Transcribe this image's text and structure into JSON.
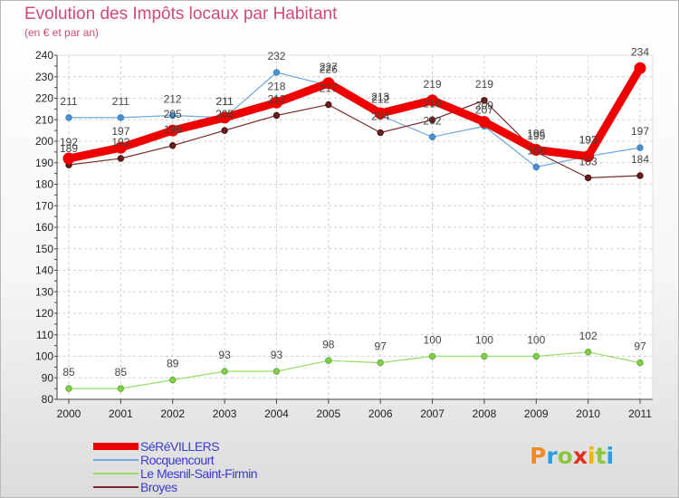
{
  "chart_data": {
    "type": "line",
    "title": "Evolution des Impôts locaux par Habitant",
    "subtitle": "(en € et par an)",
    "xlabel": "",
    "ylabel": "",
    "categories": [
      "2000",
      "2001",
      "2002",
      "2003",
      "2004",
      "2005",
      "2006",
      "2007",
      "2008",
      "2009",
      "2010",
      "2011"
    ],
    "y_ticks": [
      "240",
      "230",
      "220",
      "210",
      "200",
      "190",
      "180",
      "170",
      "160",
      "150",
      "140",
      "130",
      "120",
      "110",
      "100",
      "90",
      "80"
    ],
    "ylim": [
      80,
      240
    ],
    "grid": true,
    "legend_position": "bottom-left",
    "series": [
      {
        "name": "SéRéVILLERS",
        "color": "#ee0000",
        "values": [
          192,
          197,
          205,
          211,
          218,
          227,
          213,
          219,
          209,
          196,
          193,
          234
        ],
        "labels": [
          "192",
          "197",
          "205",
          "211",
          "218",
          "227",
          "213",
          "219",
          "209",
          "196",
          "193",
          "234"
        ]
      },
      {
        "name": "Rocquencourt",
        "color": "#6fa8dc",
        "values": [
          211,
          211,
          212,
          211,
          232,
          226,
          212,
          202,
          207,
          188,
          193,
          197
        ],
        "labels": [
          "211",
          "211",
          "212",
          "211",
          "232",
          "226",
          "212",
          "202",
          "207",
          "188",
          "193",
          "197"
        ]
      },
      {
        "name": "Le Mesnil-Saint-Firmin",
        "color": "#99dd66",
        "values": [
          85,
          85,
          89,
          93,
          93,
          98,
          97,
          100,
          100,
          100,
          102,
          97
        ],
        "labels": [
          "85",
          "85",
          "89",
          "93",
          "93",
          "98",
          "97",
          "100",
          "100",
          "100",
          "102",
          "97"
        ]
      },
      {
        "name": "Broyes",
        "color": "#7a2a2a",
        "values": [
          189,
          192,
          198,
          205,
          212,
          217,
          204,
          210,
          219,
          195,
          183,
          184
        ],
        "labels": [
          "189",
          "192",
          "198",
          "205",
          "212",
          "217",
          "204",
          "210",
          "219",
          "195",
          "183",
          "184"
        ]
      }
    ]
  },
  "logo": {
    "letters": [
      "P",
      "r",
      "o",
      "x",
      "i",
      "t",
      "i"
    ],
    "colors": [
      "#f08a24",
      "#26a0e0",
      "#8cc63f",
      "#e0301e",
      "#f0b400",
      "#8cc63f",
      "#26a0e0"
    ]
  }
}
